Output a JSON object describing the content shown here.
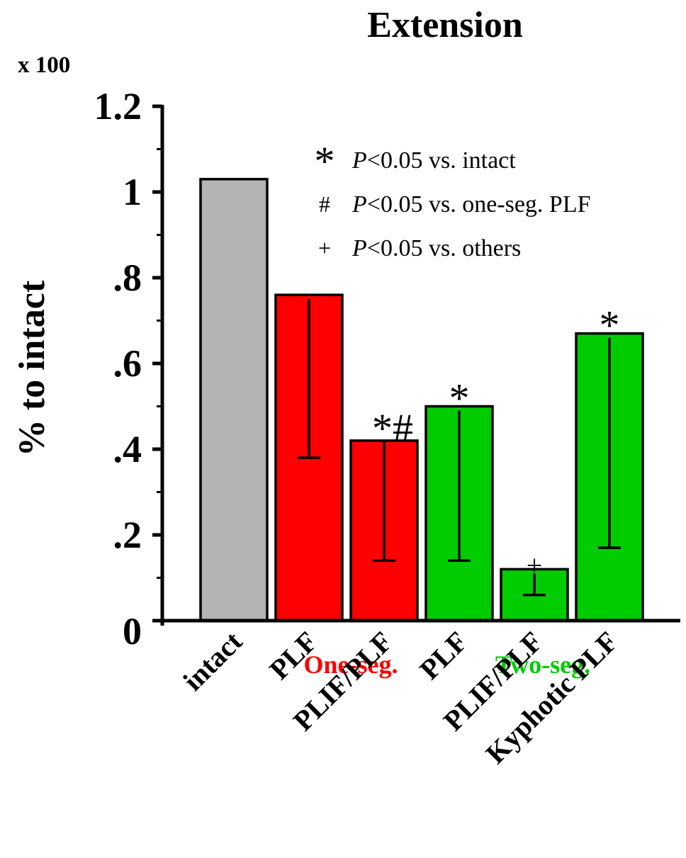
{
  "chart_data": {
    "type": "bar",
    "title": "Extension",
    "ylabel": "% to intact",
    "scale_label": "x 100",
    "ylim": [
      0,
      1.2
    ],
    "y_ticks": [
      {
        "value": 0,
        "label": "0"
      },
      {
        "value": 0.2,
        "label": ".2"
      },
      {
        "value": 0.4,
        "label": ".4"
      },
      {
        "value": 0.6,
        "label": ".6"
      },
      {
        "value": 0.8,
        "label": ".8"
      },
      {
        "value": 1.0,
        "label": "1"
      },
      {
        "value": 1.2,
        "label": "1.2"
      }
    ],
    "categories": [
      "intact",
      "PLF",
      "PLIF/PLF",
      "PLF",
      "PLIF/PLF",
      "Kyphotic PLF"
    ],
    "groups": [
      {
        "label": "One-seg.",
        "color": "#ff0000"
      },
      {
        "label": "Two-seg.",
        "color": "#00cc00"
      }
    ],
    "bars": [
      {
        "category": "intact",
        "value": 1.03,
        "error_low": null,
        "error_high": null,
        "color": "#b3b3b3",
        "mark": ""
      },
      {
        "category": "PLF",
        "value": 0.76,
        "error_low": 0.38,
        "error_high": 0.75,
        "color": "#ff0000",
        "mark": ""
      },
      {
        "category": "PLIF/PLF",
        "value": 0.42,
        "error_low": 0.14,
        "error_high": 0.42,
        "color": "#ff0000",
        "mark": "*#"
      },
      {
        "category": "PLF",
        "value": 0.5,
        "error_low": 0.14,
        "error_high": 0.49,
        "color": "#00cc00",
        "mark": "*"
      },
      {
        "category": "PLIF/PLF",
        "value": 0.12,
        "error_low": 0.06,
        "error_high": 0.11,
        "color": "#00cc00",
        "mark": "+"
      },
      {
        "category": "Kyphotic PLF",
        "value": 0.67,
        "error_low": 0.17,
        "error_high": 0.66,
        "color": "#00cc00",
        "mark": "*"
      }
    ],
    "legend": [
      {
        "symbol": "*",
        "text": "<0.05 vs. intact"
      },
      {
        "symbol": "#",
        "text": "<0.05 vs. one-seg. PLF"
      },
      {
        "symbol": "+",
        "text": "<0.05 vs. others"
      }
    ],
    "legend_italic": "P",
    "legend_position": "top-right",
    "grid": false
  }
}
